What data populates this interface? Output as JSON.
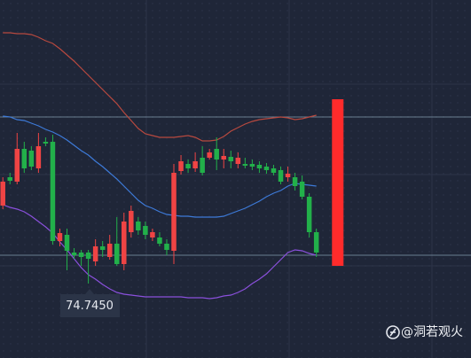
{
  "chart_data": {
    "type": "candlestick",
    "xlim": [
      -0.4,
      65.7
    ],
    "ylim": [
      74.325,
      76.345
    ],
    "up_color": "#ef4444",
    "down_color": "#22b04a",
    "current_color": "#ff2b2b",
    "x": [
      0,
      1,
      2,
      3,
      4,
      5,
      6,
      7,
      8,
      9,
      10,
      11,
      12,
      13,
      14,
      15,
      16,
      17,
      18,
      19,
      20,
      21,
      22,
      23,
      24,
      25,
      26,
      27,
      28,
      29,
      30,
      31,
      32,
      33,
      34,
      35,
      36,
      37,
      38,
      39,
      40,
      41,
      42,
      43,
      44,
      47
    ],
    "open": [
      75.185,
      75.345,
      75.32,
      75.505,
      75.495,
      75.395,
      75.545,
      75.545,
      74.985,
      75.02,
      74.92,
      74.92,
      74.92,
      74.87,
      74.955,
      74.895,
      74.97,
      74.855,
      75.035,
      75.095,
      75.07,
      75.005,
      75.005,
      74.97,
      74.93,
      75.38,
      75.42,
      75.395,
      75.455,
      75.455,
      75.505,
      75.445,
      75.46,
      75.42,
      75.42,
      75.42,
      75.415,
      75.405,
      75.395,
      75.385,
      75.345,
      75.345,
      75.32,
      75.235,
      75.035,
      74.845
    ],
    "high": [
      75.345,
      75.37,
      75.595,
      75.545,
      75.52,
      75.595,
      75.57,
      75.585,
      75.055,
      75.055,
      74.945,
      74.935,
      74.935,
      74.995,
      74.985,
      75.02,
      75.12,
      75.145,
      75.185,
      75.12,
      75.095,
      75.055,
      75.035,
      74.995,
      75.42,
      75.47,
      75.445,
      75.485,
      75.52,
      75.505,
      75.57,
      75.505,
      75.495,
      75.485,
      75.455,
      75.445,
      75.435,
      75.425,
      75.415,
      75.405,
      75.405,
      75.37,
      75.355,
      75.255,
      75.055,
      75.785
    ],
    "low": [
      75.165,
      75.305,
      75.305,
      75.37,
      75.385,
      75.37,
      75.52,
      74.965,
      74.955,
      74.82,
      74.885,
      74.845,
      74.745,
      74.845,
      74.895,
      74.88,
      74.845,
      74.82,
      75.005,
      75.02,
      74.995,
      74.985,
      74.955,
      74.905,
      74.855,
      75.36,
      75.37,
      75.375,
      75.355,
      75.445,
      75.385,
      75.395,
      75.395,
      75.395,
      75.395,
      75.385,
      75.37,
      75.365,
      75.355,
      75.305,
      75.32,
      75.27,
      75.22,
      75.005,
      74.895,
      74.845
    ],
    "close": [
      75.32,
      75.325,
      75.505,
      75.395,
      75.405,
      75.52,
      75.535,
      74.985,
      75.03,
      74.93,
      74.905,
      74.895,
      74.885,
      74.955,
      74.935,
      74.97,
      74.855,
      75.095,
      75.155,
      75.045,
      75.02,
      75.035,
      74.97,
      74.935,
      75.37,
      75.435,
      75.395,
      75.435,
      75.37,
      75.485,
      75.445,
      75.465,
      75.435,
      75.455,
      75.41,
      75.405,
      75.395,
      75.385,
      75.37,
      75.32,
      75.365,
      75.295,
      75.235,
      75.035,
      74.92,
      75.785
    ],
    "bands": [
      {
        "color": "#b8493f",
        "values": [
          76.16,
          76.16,
          76.155,
          76.155,
          76.15,
          76.135,
          76.115,
          76.1,
          76.07,
          76.035,
          76.0,
          75.96,
          75.92,
          75.88,
          75.84,
          75.8,
          75.76,
          75.71,
          75.665,
          75.62,
          75.59,
          75.58,
          75.57,
          75.57,
          75.57,
          75.575,
          75.58,
          75.57,
          75.55,
          75.55,
          75.555,
          75.575,
          75.605,
          75.625,
          75.645,
          75.66,
          75.67,
          75.675,
          75.68,
          75.685,
          75.68,
          75.67,
          75.675,
          75.685,
          75.695,
          null
        ]
      },
      {
        "color": "#3d7ad8",
        "values": [
          75.69,
          75.685,
          75.67,
          75.665,
          75.65,
          75.635,
          75.615,
          75.6,
          75.58,
          75.555,
          75.525,
          75.495,
          75.47,
          75.435,
          75.405,
          75.37,
          75.335,
          75.295,
          75.255,
          75.215,
          75.185,
          75.17,
          75.15,
          75.135,
          75.13,
          75.125,
          75.125,
          75.12,
          75.12,
          75.12,
          75.12,
          75.125,
          75.14,
          75.155,
          75.17,
          75.19,
          75.21,
          75.235,
          75.255,
          75.27,
          75.295,
          75.31,
          75.305,
          75.3,
          75.295,
          null
        ]
      },
      {
        "color": "#8a50dc",
        "values": [
          75.19,
          75.175,
          75.165,
          75.15,
          75.125,
          75.095,
          75.065,
          75.03,
          74.98,
          74.935,
          74.885,
          74.835,
          74.795,
          74.77,
          74.74,
          74.715,
          74.695,
          74.685,
          74.68,
          74.675,
          74.67,
          74.67,
          74.67,
          74.67,
          74.67,
          74.67,
          74.665,
          74.665,
          74.665,
          74.66,
          74.665,
          74.675,
          74.68,
          74.695,
          74.715,
          74.745,
          74.77,
          74.8,
          74.84,
          74.88,
          74.92,
          74.935,
          74.93,
          74.915,
          74.905,
          null
        ]
      }
    ],
    "reference_lines": [
      75.685,
      74.905
    ],
    "reference_color": "#7d95a6",
    "low_label": "74.7450",
    "watermark": "@洞若观火"
  }
}
